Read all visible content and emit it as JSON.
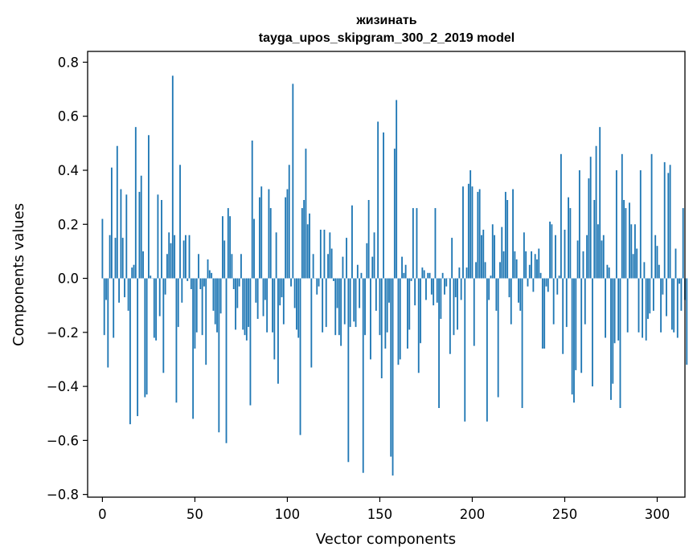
{
  "chart_data": {
    "type": "bar",
    "title_line1": "жизинать",
    "title_line2": "tayga_upos_skipgram_300_2_2019 model",
    "xlabel": "Vector components",
    "ylabel": "Components values",
    "xlim": [
      -8,
      315
    ],
    "ylim": [
      -0.81,
      0.84
    ],
    "xticks": [
      0,
      50,
      100,
      150,
      200,
      250,
      300
    ],
    "yticks": [
      -0.8,
      -0.6,
      -0.4,
      -0.2,
      0.0,
      0.2,
      0.4,
      0.6,
      0.8
    ],
    "ytick_labels": [
      "−0.8",
      "−0.6",
      "−0.4",
      "−0.2",
      "0.0",
      "0.2",
      "0.4",
      "0.6",
      "0.8"
    ],
    "grid": false,
    "bar_color": "#1f77b4",
    "values": [
      0.22,
      -0.21,
      -0.08,
      -0.33,
      0.16,
      0.41,
      -0.22,
      0.15,
      0.49,
      -0.09,
      0.33,
      0.15,
      -0.07,
      0.31,
      -0.12,
      -0.54,
      0.04,
      0.05,
      0.56,
      -0.51,
      0.32,
      0.38,
      0.1,
      -0.44,
      -0.43,
      0.53,
      0.01,
      0.0,
      -0.22,
      -0.23,
      0.31,
      -0.14,
      0.29,
      -0.35,
      -0.06,
      0.09,
      0.17,
      0.13,
      0.75,
      0.16,
      -0.46,
      -0.18,
      0.42,
      -0.09,
      0.14,
      0.16,
      -0.01,
      0.16,
      -0.04,
      -0.52,
      -0.26,
      -0.2,
      0.09,
      -0.04,
      -0.21,
      -0.03,
      -0.32,
      0.07,
      0.03,
      0.02,
      -0.12,
      -0.17,
      -0.2,
      -0.57,
      -0.13,
      0.23,
      0.14,
      -0.61,
      0.26,
      0.23,
      0.09,
      -0.04,
      -0.19,
      -0.11,
      -0.03,
      0.09,
      -0.19,
      -0.21,
      -0.23,
      -0.18,
      -0.47,
      0.51,
      0.22,
      -0.09,
      -0.15,
      0.3,
      0.34,
      -0.14,
      -0.08,
      -0.2,
      0.33,
      0.26,
      -0.2,
      -0.3,
      0.17,
      -0.39,
      -0.1,
      -0.07,
      -0.17,
      0.3,
      0.33,
      0.42,
      -0.03,
      0.72,
      -0.11,
      -0.19,
      -0.22,
      -0.58,
      0.26,
      0.29,
      0.48,
      0.2,
      0.24,
      -0.33,
      0.09,
      0.0,
      -0.06,
      -0.03,
      0.18,
      -0.2,
      0.18,
      -0.18,
      0.09,
      0.17,
      0.11,
      -0.01,
      -0.21,
      -0.11,
      -0.21,
      -0.25,
      0.08,
      -0.17,
      0.15,
      -0.68,
      -0.18,
      0.27,
      -0.16,
      -0.18,
      0.05,
      -0.11,
      0.02,
      -0.72,
      -0.21,
      0.13,
      0.29,
      -0.3,
      0.08,
      0.17,
      -0.12,
      0.58,
      -0.21,
      -0.37,
      0.54,
      -0.26,
      -0.2,
      -0.09,
      -0.66,
      -0.73,
      0.48,
      0.66,
      -0.32,
      -0.3,
      0.08,
      0.02,
      0.05,
      -0.26,
      -0.19,
      -0.01,
      0.26,
      -0.1,
      0.26,
      -0.35,
      -0.24,
      0.04,
      0.03,
      -0.08,
      0.02,
      0.02,
      -0.06,
      -0.1,
      0.26,
      -0.09,
      -0.48,
      -0.15,
      0.02,
      -0.06,
      -0.03,
      0.0,
      -0.28,
      0.15,
      -0.21,
      -0.07,
      -0.19,
      0.04,
      -0.08,
      0.34,
      -0.53,
      0.04,
      0.35,
      0.4,
      0.34,
      -0.25,
      0.06,
      0.32,
      0.33,
      0.16,
      0.18,
      0.06,
      -0.53,
      -0.08,
      0.01,
      0.2,
      0.16,
      -0.12,
      -0.44,
      0.06,
      0.19,
      0.1,
      0.32,
      0.29,
      -0.07,
      -0.17,
      0.33,
      0.1,
      0.07,
      -0.09,
      -0.12,
      -0.48,
      0.17,
      0.1,
      -0.03,
      0.05,
      0.1,
      -0.05,
      0.09,
      0.07,
      0.11,
      0.02,
      -0.26,
      -0.26,
      -0.03,
      -0.05,
      0.21,
      0.2,
      -0.17,
      0.16,
      -0.06,
      0.01,
      0.46,
      -0.28,
      0.18,
      -0.18,
      0.3,
      0.26,
      -0.43,
      -0.46,
      -0.34,
      0.14,
      0.4,
      -0.35,
      0.1,
      -0.17,
      0.16,
      0.37,
      0.45,
      -0.4,
      0.29,
      0.49,
      0.2,
      0.56,
      0.14,
      0.16,
      -0.22,
      0.05,
      0.04,
      -0.45,
      -0.39,
      -0.24,
      0.4,
      -0.23,
      -0.48,
      0.46,
      0.29,
      0.26,
      -0.2,
      0.28,
      0.2,
      0.09,
      0.2,
      0.11,
      -0.2,
      0.4,
      -0.22,
      0.06,
      -0.23,
      -0.15,
      -0.13,
      0.46,
      -0.12,
      0.16,
      0.12,
      0.05,
      -0.2,
      -0.06,
      0.43,
      -0.14,
      0.39,
      0.42,
      -0.19,
      -0.2,
      0.11,
      -0.22,
      -0.02,
      -0.12,
      0.26,
      -0.08,
      -0.32
    ]
  }
}
